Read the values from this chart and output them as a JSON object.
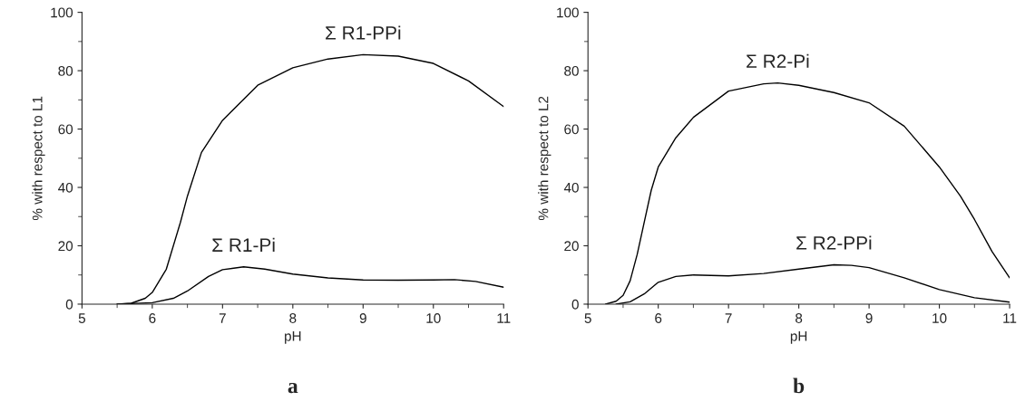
{
  "chart_data": [
    {
      "type": "line",
      "title": "a",
      "xlabel": "pH",
      "ylabel": "% with respect to L1",
      "xlim": [
        5,
        11
      ],
      "xticks": [
        5,
        6,
        7,
        8,
        9,
        10,
        11
      ],
      "ylim": [
        0,
        100
      ],
      "yticks": [
        0,
        20,
        40,
        60,
        80,
        100
      ],
      "grid": false,
      "legend": false,
      "marker": "none",
      "line_style": "solid",
      "series": [
        {
          "name": "Σ R1-PPi",
          "color": "#000000",
          "x": [
            5.5,
            5.7,
            5.9,
            6.0,
            6.2,
            6.4,
            6.5,
            6.7,
            7.0,
            7.5,
            8.0,
            8.5,
            9.0,
            9.5,
            10.0,
            10.5,
            11.0
          ],
          "values": [
            0,
            0.3,
            2,
            4,
            12,
            28,
            37,
            52,
            63,
            75,
            81,
            84,
            85.5,
            85,
            82.5,
            76.5,
            67.7
          ]
        },
        {
          "name": "Σ R1-Pi",
          "color": "#000000",
          "x": [
            5.5,
            6.0,
            6.3,
            6.5,
            6.8,
            7.0,
            7.3,
            7.6,
            8.0,
            8.5,
            9.0,
            9.5,
            10.0,
            10.3,
            10.6,
            11.0
          ],
          "values": [
            0,
            0.5,
            2,
            4.5,
            9.5,
            11.8,
            12.8,
            12,
            10.3,
            9,
            8.3,
            8.2,
            8.3,
            8.4,
            7.8,
            5.8
          ]
        }
      ]
    },
    {
      "type": "line",
      "title": "b",
      "xlabel": "pH",
      "ylabel": "% with respect to L2",
      "xlim": [
        5,
        11
      ],
      "xticks": [
        5,
        6,
        7,
        8,
        9,
        10,
        11
      ],
      "ylim": [
        0,
        100
      ],
      "yticks": [
        0,
        20,
        40,
        60,
        80,
        100
      ],
      "grid": false,
      "legend": false,
      "marker": "none",
      "line_style": "solid",
      "series": [
        {
          "name": "Σ R2-Pi",
          "color": "#000000",
          "x": [
            5.25,
            5.4,
            5.5,
            5.6,
            5.7,
            5.8,
            5.9,
            6.0,
            6.25,
            6.5,
            7.0,
            7.5,
            7.7,
            8.0,
            8.5,
            9.0,
            9.5,
            10.0,
            10.3,
            10.5,
            10.75,
            11.0
          ],
          "values": [
            0,
            1,
            3,
            8,
            17,
            28,
            39,
            47,
            57,
            64,
            73,
            75.5,
            75.8,
            75,
            72.5,
            69,
            61,
            47,
            37,
            29,
            18,
            9
          ]
        },
        {
          "name": "Σ R2-PPi",
          "color": "#000000",
          "x": [
            5.4,
            5.6,
            5.8,
            6.0,
            6.25,
            6.5,
            7.0,
            7.5,
            8.0,
            8.5,
            8.75,
            9.0,
            9.5,
            10.0,
            10.5,
            11.0
          ],
          "values": [
            0,
            0.8,
            3.5,
            7.5,
            9.5,
            10,
            9.7,
            10.5,
            12,
            13.5,
            13.3,
            12.5,
            9,
            5,
            2.2,
            0.7
          ]
        }
      ]
    }
  ]
}
